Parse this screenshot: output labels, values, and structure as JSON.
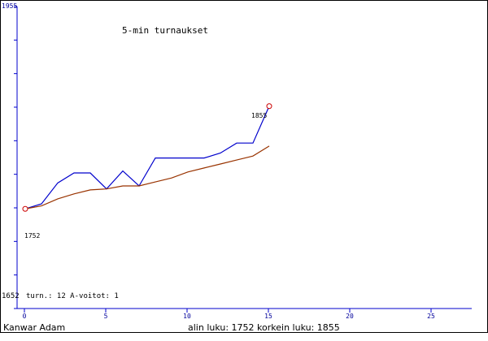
{
  "chart_data": {
    "type": "line",
    "title": "5-min turnaukset",
    "xlim": [
      0,
      27
    ],
    "ylim": [
      1652,
      1955
    ],
    "xticks": [
      0,
      5,
      10,
      15,
      20,
      25
    ],
    "ytick_top_label": "1955",
    "ytick_bottom_label": "1652",
    "grid": false,
    "series": [
      {
        "color": "#0000cc",
        "x": [
          0,
          1,
          2,
          3,
          4,
          5,
          6,
          7,
          8,
          9,
          10,
          11,
          12,
          13,
          14,
          15
        ],
        "y": [
          1752,
          1757,
          1778,
          1788,
          1788,
          1772,
          1790,
          1775,
          1803,
          1803,
          1803,
          1803,
          1808,
          1818,
          1818,
          1855
        ]
      },
      {
        "color": "#993300",
        "x": [
          0,
          1,
          2,
          3,
          4,
          5,
          6,
          7,
          8,
          9,
          10,
          11,
          12,
          13,
          14,
          15
        ],
        "y": [
          1752,
          1755,
          1762,
          1767,
          1771,
          1772,
          1775,
          1775,
          1779,
          1783,
          1789,
          1793,
          1797,
          1801,
          1805,
          1815
        ]
      }
    ],
    "annotations": [
      {
        "text": "1752",
        "x": 0,
        "y": 1752
      },
      {
        "text": "1855",
        "x": 15,
        "y": 1855
      }
    ],
    "markers": [
      {
        "x": 0,
        "y": 1752
      },
      {
        "x": 15,
        "y": 1855
      }
    ],
    "stats_line": "turn.: 12  A-voitot: 1"
  },
  "footer": {
    "player_name": "Kanwar Adam",
    "range_text": "alin luku: 1752  korkein luku: 1855"
  },
  "colors": {
    "axis": "#0000cc",
    "label": "#000099",
    "marker": "#cc0000"
  }
}
